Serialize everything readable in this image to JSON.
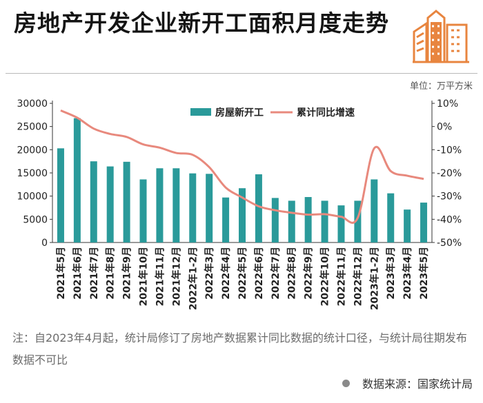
{
  "header": {
    "title": "房地产开发企业新开工面积月度走势",
    "unit_label": "单位：万平方米"
  },
  "footer": {
    "note": "注：自2023年4月起，统计局修订了房地产数据累计同比数据的统计口径，与统计局往期发布数据不可比",
    "source": "数据来源：国家统计局"
  },
  "colors": {
    "bar": "#2a9a9a",
    "line": "#e8897d",
    "logo": "#e8853f",
    "axis": "#333333"
  },
  "icons": {
    "logo": "building-icon",
    "source_dot": "dot-icon"
  },
  "chart_data": {
    "type": "bar",
    "title": "",
    "categories": [
      "2021年5月",
      "2021年6月",
      "2021年7月",
      "2021年8月",
      "2021年9月",
      "2021年10月",
      "2021年11月",
      "2021年12月",
      "2022年1-2月",
      "2022年3月",
      "2022年4月",
      "2022年5月",
      "2022年6月",
      "2022年7月",
      "2022年8月",
      "2022年9月",
      "2022年10月",
      "2022年11月",
      "2022年12月",
      "2023年1-2月",
      "2023年3月",
      "2023年4月",
      "2023年5月"
    ],
    "series": [
      {
        "name": "房屋新开工",
        "type": "bar",
        "axis": "left",
        "values": [
          20300,
          26800,
          17500,
          16400,
          17400,
          13600,
          16000,
          16000,
          14900,
          14800,
          9700,
          11700,
          14700,
          9600,
          9000,
          9800,
          9000,
          8000,
          9000,
          13600,
          10600,
          7100,
          8600
        ]
      },
      {
        "name": "累计同比增速",
        "type": "line",
        "axis": "right",
        "unit": "%",
        "values": [
          6.9,
          3.8,
          -0.9,
          -3.2,
          -4.5,
          -7.7,
          -9.1,
          -11.4,
          -12.2,
          -17.5,
          -26.3,
          -30.6,
          -34.4,
          -36.1,
          -37.2,
          -38.0,
          -37.8,
          -38.9,
          -39.4,
          -9.4,
          -19.2,
          -21.2,
          -22.6
        ]
      }
    ],
    "y_left": {
      "min": 0,
      "max": 30000,
      "ticks": [
        0,
        5000,
        10000,
        15000,
        20000,
        25000,
        30000
      ]
    },
    "y_right": {
      "min": -50,
      "max": 10,
      "ticks": [
        "10%",
        "0%",
        "-10%",
        "-20%",
        "-30%",
        "-40%",
        "-50%"
      ]
    },
    "legend": {
      "position": "top-center",
      "items": [
        "房屋新开工",
        "累计同比增速"
      ]
    }
  }
}
